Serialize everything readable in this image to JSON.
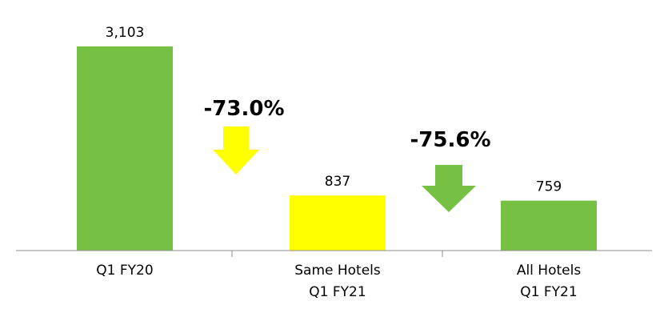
{
  "chart_data": {
    "type": "bar",
    "categories": [
      [
        "Q1 FY20"
      ],
      [
        "Same Hotels",
        "Q1 FY21"
      ],
      [
        "All Hotels",
        "Q1 FY21"
      ]
    ],
    "values": [
      3103,
      837,
      759
    ],
    "value_labels": [
      "3,103",
      "837",
      "759"
    ],
    "bar_colors": [
      "#76c043",
      "#ffff00",
      "#76c043"
    ],
    "title": "",
    "xlabel": "",
    "ylabel": "",
    "ylim": [
      0,
      3500
    ],
    "grid": false,
    "legend": "none",
    "annotations": [
      {
        "text": "-73.0%",
        "arrow": "down",
        "color": "#ffff00",
        "between": [
          0,
          1
        ]
      },
      {
        "text": "-75.6%",
        "arrow": "down",
        "color": "#76c043",
        "between": [
          1,
          2
        ]
      }
    ]
  }
}
